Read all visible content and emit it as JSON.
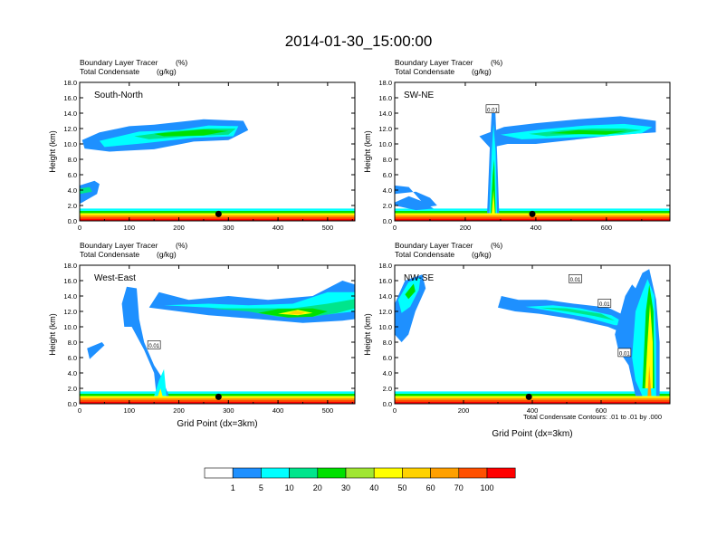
{
  "title": "2014-01-30_15:00:00",
  "footnote": "Total Condensate Contours: .01 to .01 by .000",
  "colorbar": {
    "colors": [
      "#ffffff",
      "#1e90ff",
      "#00ffff",
      "#00e58c",
      "#00e000",
      "#a0e632",
      "#ffff00",
      "#ffd200",
      "#ffa000",
      "#ff5000",
      "#ff0000"
    ],
    "labels": [
      "1",
      "5",
      "10",
      "20",
      "30",
      "40",
      "50",
      "60",
      "70",
      "100"
    ]
  },
  "chart_data": [
    {
      "type": "heatmap",
      "panel": "South-North",
      "subtitle_left": "Boundary Layer Tracer",
      "subtitle_left_unit": "(%)",
      "subtitle_left2": "Total Condensate",
      "subtitle_left2_unit": "(g/kg)",
      "ylabel": "Height (km)",
      "xlabel": "",
      "xlim": [
        0,
        555
      ],
      "ylim": [
        0,
        18
      ],
      "xticks": [
        "0",
        "100",
        "200",
        "300",
        "400",
        "500"
      ],
      "yticks": [
        "0.0",
        "2.0",
        "4.0",
        "6.0",
        "8.0",
        "10.0",
        "12.0",
        "14.0",
        "16.0",
        "18.0"
      ]
    },
    {
      "type": "heatmap",
      "panel": "SW-NE",
      "subtitle_left": "Boundary Layer Tracer",
      "subtitle_left_unit": "(%)",
      "subtitle_left2": "Total Condensate",
      "subtitle_left2_unit": "(g/kg)",
      "ylabel": "Height (km)",
      "xlabel": "",
      "xlim": [
        0,
        780
      ],
      "ylim": [
        0,
        18
      ],
      "xticks": [
        "0",
        "200",
        "400",
        "600"
      ],
      "yticks": [
        "0.0",
        "2.0",
        "4.0",
        "6.0",
        "8.0",
        "10.0",
        "12.0",
        "14.0",
        "16.0",
        "18.0"
      ],
      "contour_labels": [
        "0.01"
      ]
    },
    {
      "type": "heatmap",
      "panel": "West-East",
      "subtitle_left": "Boundary Layer Tracer",
      "subtitle_left_unit": "(%)",
      "subtitle_left2": "Total Condensate",
      "subtitle_left2_unit": "(g/kg)",
      "ylabel": "Height (km)",
      "xlabel": "Grid Point (dx=3km)",
      "xlim": [
        0,
        555
      ],
      "ylim": [
        0,
        18
      ],
      "xticks": [
        "0",
        "100",
        "200",
        "300",
        "400",
        "500"
      ],
      "yticks": [
        "0.0",
        "2.0",
        "4.0",
        "6.0",
        "8.0",
        "10.0",
        "12.0",
        "14.0",
        "16.0",
        "18.0"
      ],
      "contour_labels": [
        "0.01"
      ]
    },
    {
      "type": "heatmap",
      "panel": "NW-SE",
      "subtitle_left": "Boundary Layer Tracer",
      "subtitle_left_unit": "(%)",
      "subtitle_left2": "Total Condensate",
      "subtitle_left2_unit": "(g/kg)",
      "ylabel": "Height (km)",
      "xlabel": "Grid Point (dx=3km)",
      "xlim": [
        0,
        800
      ],
      "ylim": [
        0,
        18
      ],
      "xticks": [
        "0",
        "200",
        "400",
        "600"
      ],
      "yticks": [
        "0.0",
        "2.0",
        "4.0",
        "6.0",
        "8.0",
        "10.0",
        "12.0",
        "14.0",
        "16.0",
        "18.0"
      ],
      "contour_labels": [
        "0.01",
        "0.01",
        "0.01"
      ]
    }
  ]
}
